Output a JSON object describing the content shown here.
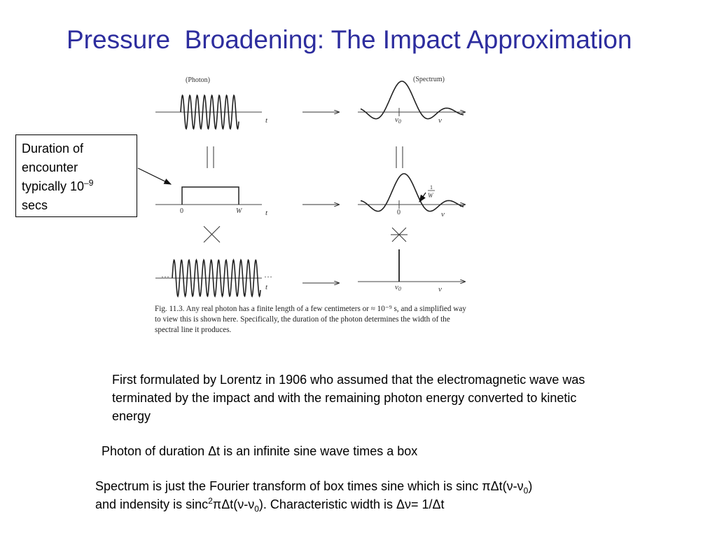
{
  "title": "Pressure  Broadening: The Impact Approximation",
  "callout": {
    "line1": "Duration of",
    "line2": "encounter",
    "line3_prefix": "typically 10",
    "line3_exp": "–9",
    "line4": "secs"
  },
  "figure": {
    "photon_label": "(Photon)",
    "spectrum_label": "(Spectrum)",
    "t_label": "t",
    "nu_label": "ν",
    "nu0_label": "ν",
    "nu0_sub": "0",
    "zero_label": "0",
    "w_label": "W",
    "inv_w_num": "1",
    "inv_w_den": "W",
    "ellipsis": "…",
    "caption": "Fig. 11.3. Any real photon has a finite length of a few centimeters or ≈ 10⁻⁹ s, and a simplified way to view this is shown here. Specifically, the duration of the photon determines the width of the spectral line it produces."
  },
  "paragraphs": {
    "p1": "First formulated by Lorentz in 1906 who assumed that the electromagnetic wave was terminated by the impact and with the remaining photon energy converted to kinetic energy",
    "p2": "Photon of duration Δt is an infinite sine wave times a box",
    "p3_a": "Spectrum is just the Fourier transform of box times sine which is sinc πΔt(ν-ν",
    "p3_a_sub": "0",
    "p3_b": ")",
    "p3_c": "and indensity is sinc",
    "p3_c_sup": "2",
    "p3_d": "πΔt(ν-ν",
    "p3_d_sub": "0",
    "p3_e": "). Characteristic width is Δν= 1/Δt"
  }
}
